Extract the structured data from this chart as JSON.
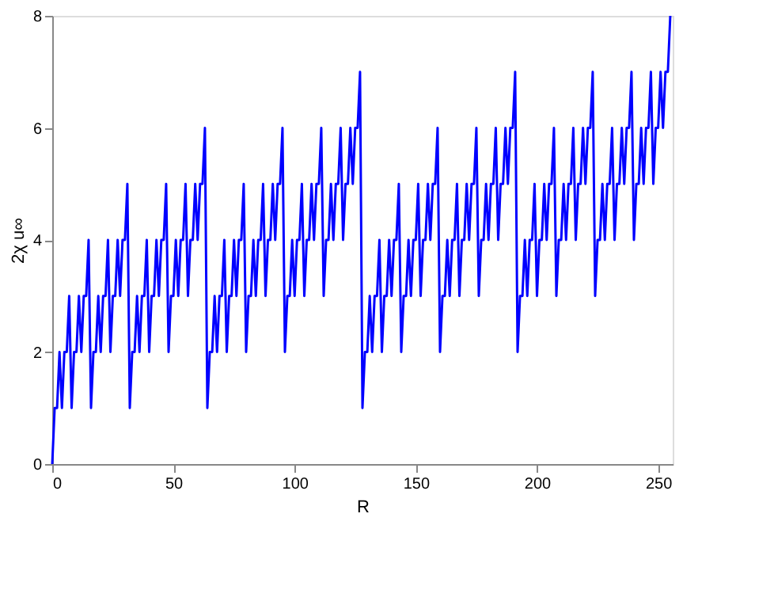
{
  "chart_data": {
    "type": "line",
    "xlabel": "R",
    "ylabel": "2χ u∞",
    "xlim": [
      0,
      256
    ],
    "xticks": [
      0,
      50,
      100,
      150,
      200,
      250
    ],
    "ylim": [
      0,
      8
    ],
    "yticks": [
      0,
      2,
      4,
      6,
      8
    ],
    "grid": false,
    "line_style": "solid",
    "marker": "none",
    "x": [
      0,
      1,
      2,
      3,
      4,
      5,
      6,
      7,
      8,
      9,
      10,
      11,
      12,
      13,
      14,
      15,
      16,
      17,
      18,
      19,
      20,
      21,
      22,
      23,
      24,
      25,
      26,
      27,
      28,
      29,
      30,
      31,
      32,
      33,
      34,
      35,
      36,
      37,
      38,
      39,
      40,
      41,
      42,
      43,
      44,
      45,
      46,
      47,
      48,
      49,
      50,
      51,
      52,
      53,
      54,
      55,
      56,
      57,
      58,
      59,
      60,
      61,
      62,
      63,
      64,
      65,
      66,
      67,
      68,
      69,
      70,
      71,
      72,
      73,
      74,
      75,
      76,
      77,
      78,
      79,
      80,
      81,
      82,
      83,
      84,
      85,
      86,
      87,
      88,
      89,
      90,
      91,
      92,
      93,
      94,
      95,
      96,
      97,
      98,
      99,
      100,
      101,
      102,
      103,
      104,
      105,
      106,
      107,
      108,
      109,
      110,
      111,
      112,
      113,
      114,
      115,
      116,
      117,
      118,
      119,
      120,
      121,
      122,
      123,
      124,
      125,
      126,
      127,
      128,
      129,
      130,
      131,
      132,
      133,
      134,
      135,
      136,
      137,
      138,
      139,
      140,
      141,
      142,
      143,
      144,
      145,
      146,
      147,
      148,
      149,
      150,
      151,
      152,
      153,
      154,
      155,
      156,
      157,
      158,
      159,
      160,
      161,
      162,
      163,
      164,
      165,
      166,
      167,
      168,
      169,
      170,
      171,
      172,
      173,
      174,
      175,
      176,
      177,
      178,
      179,
      180,
      181,
      182,
      183,
      184,
      185,
      186,
      187,
      188,
      189,
      190,
      191,
      192,
      193,
      194,
      195,
      196,
      197,
      198,
      199,
      200,
      201,
      202,
      203,
      204,
      205,
      206,
      207,
      208,
      209,
      210,
      211,
      212,
      213,
      214,
      215,
      216,
      217,
      218,
      219,
      220,
      221,
      222,
      223,
      224,
      225,
      226,
      227,
      228,
      229,
      230,
      231,
      232,
      233,
      234,
      235,
      236,
      237,
      238,
      239,
      240,
      241,
      242,
      243,
      244,
      245,
      246,
      247,
      248,
      249,
      250,
      251,
      252,
      253,
      254,
      255
    ],
    "series": [
      {
        "color": "#0000ff",
        "values": [
          0,
          1,
          1,
          2,
          1,
          2,
          2,
          3,
          1,
          2,
          2,
          3,
          2,
          3,
          3,
          4,
          1,
          2,
          2,
          3,
          2,
          3,
          3,
          4,
          2,
          3,
          3,
          4,
          3,
          4,
          4,
          5,
          1,
          2,
          2,
          3,
          2,
          3,
          3,
          4,
          2,
          3,
          3,
          4,
          3,
          4,
          4,
          5,
          2,
          3,
          3,
          4,
          3,
          4,
          4,
          5,
          3,
          4,
          4,
          5,
          4,
          5,
          5,
          6,
          1,
          2,
          2,
          3,
          2,
          3,
          3,
          4,
          2,
          3,
          3,
          4,
          3,
          4,
          4,
          5,
          2,
          3,
          3,
          4,
          3,
          4,
          4,
          5,
          3,
          4,
          4,
          5,
          4,
          5,
          5,
          6,
          2,
          3,
          3,
          4,
          3,
          4,
          4,
          5,
          3,
          4,
          4,
          5,
          4,
          5,
          5,
          6,
          3,
          4,
          4,
          5,
          4,
          5,
          5,
          6,
          4,
          5,
          5,
          6,
          5,
          6,
          6,
          7,
          1,
          2,
          2,
          3,
          2,
          3,
          3,
          4,
          2,
          3,
          3,
          4,
          3,
          4,
          4,
          5,
          2,
          3,
          3,
          4,
          3,
          4,
          4,
          5,
          3,
          4,
          4,
          5,
          4,
          5,
          5,
          6,
          2,
          3,
          3,
          4,
          3,
          4,
          4,
          5,
          3,
          4,
          4,
          5,
          4,
          5,
          5,
          6,
          3,
          4,
          4,
          5,
          4,
          5,
          5,
          6,
          4,
          5,
          5,
          6,
          5,
          6,
          6,
          7,
          2,
          3,
          3,
          4,
          3,
          4,
          4,
          5,
          3,
          4,
          4,
          5,
          4,
          5,
          5,
          6,
          3,
          4,
          4,
          5,
          4,
          5,
          5,
          6,
          4,
          5,
          5,
          6,
          5,
          6,
          6,
          7,
          3,
          4,
          4,
          5,
          4,
          5,
          5,
          6,
          4,
          5,
          5,
          6,
          5,
          6,
          6,
          7,
          4,
          5,
          5,
          6,
          5,
          6,
          6,
          7,
          5,
          6,
          6,
          7,
          6,
          7,
          7,
          8
        ]
      }
    ]
  }
}
